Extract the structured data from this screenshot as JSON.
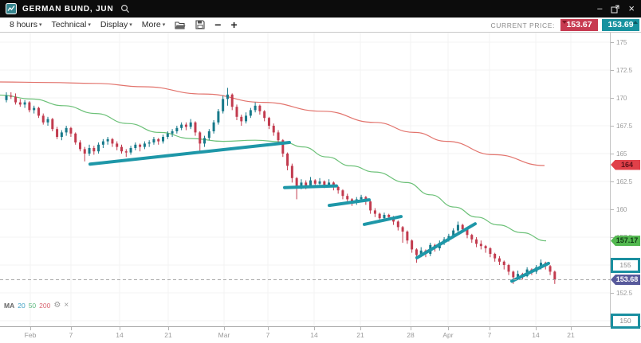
{
  "window": {
    "title": "GERMAN BUND, JUN",
    "minimize_label": "–",
    "close_label": "×"
  },
  "toolbar": {
    "menus": [
      {
        "label": "8 hours"
      },
      {
        "label": "Technical"
      },
      {
        "label": "Display"
      },
      {
        "label": "More"
      }
    ],
    "caret": "▾",
    "zoom_out_label": "−",
    "zoom_in_label": "+",
    "current_price_label": "CURRENT PRICE:",
    "bid": "153.67",
    "ask": "153.69",
    "bid_color": "#c73a50",
    "ask_color": "#17929f"
  },
  "legend": {
    "name": "MA",
    "periods": [
      {
        "label": "20",
        "color": "#3d9fc4"
      },
      {
        "label": "50",
        "color": "#5cb87e"
      },
      {
        "label": "200",
        "color": "#d96470"
      }
    ],
    "gear": "⚙",
    "close": "×"
  },
  "chart_data": {
    "type": "candlestick",
    "title": "GERMAN BUND, JUN",
    "timeframe": "8 hours",
    "ylim": [
      149.5,
      175.8
    ],
    "grid": true,
    "current_price": 153.68,
    "colors": {
      "up": "#17798a",
      "down": "#c23b4e",
      "trendline": "#1e97a8",
      "ma50": "#6cc178",
      "ma200": "#e2736c",
      "grid": "#f3f3f3",
      "price_line": "#a8a8a8"
    },
    "y_ticks": [
      {
        "label": "175",
        "price": 175
      },
      {
        "label": "172.5",
        "price": 172.5
      },
      {
        "label": "170",
        "price": 170
      },
      {
        "label": "167.5",
        "price": 167.5
      },
      {
        "label": "165",
        "price": 165
      },
      {
        "label": "162.5",
        "price": 162.5
      },
      {
        "label": "160",
        "price": 160
      },
      {
        "label": "157.5",
        "price": 157.5
      },
      {
        "label": "155",
        "price": 155
      },
      {
        "label": "152.5",
        "price": 152.5
      },
      {
        "label": "150",
        "price": 150
      }
    ],
    "x_ticks": [
      {
        "label": "Feb",
        "x": 38
      },
      {
        "label": "7",
        "x": 89
      },
      {
        "label": "14",
        "x": 150
      },
      {
        "label": "21",
        "x": 211
      },
      {
        "label": "Mar",
        "x": 281
      },
      {
        "label": "7",
        "x": 336
      },
      {
        "label": "14",
        "x": 394
      },
      {
        "label": "21",
        "x": 452
      },
      {
        "label": "28",
        "x": 515
      },
      {
        "label": "Apr",
        "x": 562
      },
      {
        "label": "7",
        "x": 614
      },
      {
        "label": "14",
        "x": 672
      },
      {
        "label": "21",
        "x": 716
      }
    ],
    "axis_markers": [
      {
        "label": "164",
        "type": "tag",
        "price": 164.0,
        "bg": "#e04049",
        "fg": "#5d1019"
      },
      {
        "label": "157.17",
        "type": "tag",
        "price": 157.17,
        "bg": "#52b84f",
        "fg": "#103a14"
      },
      {
        "label": "155",
        "type": "box",
        "price": 155
      },
      {
        "label": "153.68",
        "type": "tag",
        "price": 153.68,
        "bg": "#585a9b",
        "fg": "#ffffff"
      },
      {
        "label": "150",
        "type": "box",
        "price": 150
      }
    ],
    "ma50_points": [
      [
        0,
        170.25
      ],
      [
        40,
        169.9
      ],
      [
        80,
        169.3
      ],
      [
        120,
        168.6
      ],
      [
        160,
        167.7
      ],
      [
        200,
        166.9
      ],
      [
        240,
        166.35
      ],
      [
        280,
        166.1
      ],
      [
        320,
        166.2
      ],
      [
        355,
        166.05
      ],
      [
        380,
        165.6
      ],
      [
        410,
        164.7
      ],
      [
        440,
        163.9
      ],
      [
        470,
        163.35
      ],
      [
        510,
        162.4
      ],
      [
        540,
        161.3
      ],
      [
        570,
        160.2
      ],
      [
        598,
        159.3
      ],
      [
        625,
        158.6
      ],
      [
        655,
        157.9
      ],
      [
        685,
        157.17
      ]
    ],
    "ma200_points": [
      [
        0,
        171.43
      ],
      [
        60,
        171.38
      ],
      [
        120,
        171.3
      ],
      [
        180,
        171.0
      ],
      [
        255,
        170.35
      ],
      [
        330,
        169.6
      ],
      [
        405,
        168.8
      ],
      [
        470,
        167.8
      ],
      [
        520,
        166.9
      ],
      [
        560,
        166.1
      ],
      [
        620,
        164.9
      ],
      [
        683,
        163.93
      ]
    ],
    "trendlines": [
      [
        113,
        164.05,
        363,
        166.0
      ],
      [
        357,
        161.95,
        422,
        162.1
      ],
      [
        413,
        160.35,
        463,
        160.85
      ],
      [
        457,
        158.65,
        503,
        159.35
      ],
      [
        523,
        155.65,
        596,
        158.7
      ],
      [
        642,
        153.55,
        688,
        155.15
      ]
    ],
    "candles": [
      [
        169.8,
        170.5,
        169.6,
        170.2
      ],
      [
        170.2,
        170.5,
        169.9,
        170.1
      ],
      [
        170.1,
        170.4,
        169.4,
        169.6
      ],
      [
        169.6,
        169.9,
        169.2,
        169.4
      ],
      [
        169.4,
        169.8,
        169.1,
        169.6
      ],
      [
        169.6,
        169.7,
        168.7,
        168.9
      ],
      [
        168.9,
        169.3,
        168.6,
        169.1
      ],
      [
        169.1,
        169.2,
        168.2,
        168.4
      ],
      [
        168.4,
        168.6,
        167.6,
        167.8
      ],
      [
        167.8,
        168.3,
        167.5,
        168.1
      ],
      [
        168.1,
        168.2,
        167.0,
        167.2
      ],
      [
        167.2,
        167.4,
        166.3,
        166.5
      ],
      [
        166.5,
        167.1,
        166.2,
        166.9
      ],
      [
        166.9,
        167.5,
        166.6,
        167.3
      ],
      [
        167.3,
        167.4,
        166.5,
        166.8
      ],
      [
        166.8,
        166.9,
        165.8,
        166.0
      ],
      [
        166.0,
        166.2,
        165.2,
        165.4
      ],
      [
        165.4,
        165.6,
        164.3,
        165.0
      ],
      [
        165.0,
        165.8,
        164.8,
        165.5
      ],
      [
        165.5,
        165.7,
        164.9,
        165.2
      ],
      [
        165.2,
        166.0,
        165.0,
        165.8
      ],
      [
        165.8,
        166.3,
        165.5,
        166.1
      ],
      [
        166.1,
        166.5,
        165.8,
        166.3
      ],
      [
        166.3,
        166.4,
        165.6,
        165.9
      ],
      [
        165.9,
        166.1,
        165.3,
        165.6
      ],
      [
        165.6,
        165.8,
        165.0,
        165.2
      ],
      [
        165.2,
        165.4,
        164.7,
        165.1
      ],
      [
        165.1,
        165.7,
        164.9,
        165.5
      ],
      [
        165.5,
        166.0,
        165.3,
        165.8
      ],
      [
        165.8,
        165.9,
        165.2,
        165.6
      ],
      [
        165.6,
        166.1,
        165.4,
        165.9
      ],
      [
        165.9,
        166.2,
        165.6,
        166.0
      ],
      [
        166.0,
        166.5,
        165.8,
        166.3
      ],
      [
        166.3,
        166.4,
        165.8,
        166.1
      ],
      [
        166.1,
        166.7,
        165.9,
        166.5
      ],
      [
        166.5,
        167.0,
        166.3,
        166.8
      ],
      [
        166.8,
        167.2,
        166.5,
        167.0
      ],
      [
        167.0,
        167.5,
        166.8,
        167.3
      ],
      [
        167.3,
        167.8,
        167.1,
        167.6
      ],
      [
        167.6,
        167.8,
        167.1,
        167.4
      ],
      [
        167.4,
        168.1,
        167.2,
        167.8
      ],
      [
        167.8,
        167.9,
        166.6,
        166.9
      ],
      [
        166.9,
        167.0,
        165.0,
        165.9
      ],
      [
        165.9,
        166.6,
        165.6,
        166.4
      ],
      [
        166.4,
        167.2,
        166.2,
        167.0
      ],
      [
        167.0,
        168.0,
        166.8,
        167.8
      ],
      [
        167.8,
        169.0,
        167.6,
        168.8
      ],
      [
        168.8,
        170.2,
        168.6,
        169.9
      ],
      [
        169.9,
        170.9,
        169.3,
        170.3
      ],
      [
        170.3,
        170.4,
        168.9,
        169.2
      ],
      [
        169.2,
        169.4,
        168.0,
        168.3
      ],
      [
        168.3,
        168.5,
        167.5,
        167.9
      ],
      [
        167.9,
        168.7,
        167.7,
        168.4
      ],
      [
        168.4,
        169.1,
        168.2,
        168.9
      ],
      [
        168.9,
        169.6,
        168.7,
        169.3
      ],
      [
        169.3,
        169.4,
        168.5,
        168.8
      ],
      [
        168.8,
        168.9,
        167.9,
        168.2
      ],
      [
        168.2,
        168.3,
        167.2,
        167.5
      ],
      [
        167.5,
        167.7,
        166.6,
        166.9
      ],
      [
        166.9,
        167.1,
        165.9,
        166.2
      ],
      [
        166.2,
        166.3,
        164.7,
        165.0
      ],
      [
        165.0,
        165.1,
        163.5,
        163.9
      ],
      [
        163.9,
        164.1,
        162.4,
        162.8
      ],
      [
        162.8,
        162.9,
        160.9,
        162.0
      ],
      [
        162.0,
        162.7,
        161.8,
        162.4
      ],
      [
        162.4,
        162.6,
        161.8,
        162.1
      ],
      [
        162.1,
        162.9,
        161.9,
        162.6
      ],
      [
        162.6,
        162.7,
        162.0,
        162.3
      ],
      [
        162.3,
        162.8,
        162.1,
        162.5
      ],
      [
        162.5,
        162.6,
        161.9,
        162.2
      ],
      [
        162.2,
        162.7,
        162.0,
        162.4
      ],
      [
        162.4,
        162.5,
        161.7,
        162.0
      ],
      [
        162.0,
        162.1,
        161.4,
        161.7
      ],
      [
        161.7,
        161.8,
        160.9,
        161.2
      ],
      [
        161.2,
        161.4,
        160.6,
        160.9
      ],
      [
        160.9,
        161.0,
        160.3,
        160.6
      ],
      [
        160.6,
        161.1,
        160.4,
        160.9
      ],
      [
        160.9,
        161.3,
        160.7,
        161.1
      ],
      [
        161.1,
        161.2,
        160.4,
        160.7
      ],
      [
        160.7,
        160.8,
        159.6,
        159.9
      ],
      [
        159.9,
        160.1,
        159.3,
        159.6
      ],
      [
        159.6,
        159.7,
        158.9,
        159.2
      ],
      [
        159.2,
        159.7,
        159.0,
        159.5
      ],
      [
        159.5,
        159.6,
        159.0,
        159.3
      ],
      [
        159.3,
        159.4,
        158.6,
        158.9
      ],
      [
        158.9,
        159.0,
        158.1,
        158.4
      ],
      [
        158.4,
        158.5,
        157.0,
        158.0
      ],
      [
        158.0,
        158.1,
        156.9,
        157.2
      ],
      [
        157.2,
        157.3,
        156.1,
        156.4
      ],
      [
        156.4,
        156.5,
        155.2,
        155.9
      ],
      [
        155.9,
        156.6,
        155.7,
        156.3
      ],
      [
        156.3,
        156.4,
        155.7,
        156.0
      ],
      [
        156.0,
        157.0,
        155.8,
        156.8
      ],
      [
        156.8,
        156.9,
        156.2,
        156.5
      ],
      [
        156.5,
        157.2,
        156.3,
        157.0
      ],
      [
        157.0,
        157.5,
        156.8,
        157.3
      ],
      [
        157.3,
        157.8,
        157.1,
        157.6
      ],
      [
        157.6,
        158.3,
        157.4,
        158.1
      ],
      [
        158.1,
        158.9,
        157.9,
        158.6
      ],
      [
        158.6,
        158.7,
        157.9,
        158.2
      ],
      [
        158.2,
        158.3,
        157.4,
        157.7
      ],
      [
        157.7,
        157.8,
        157.0,
        157.3
      ],
      [
        157.3,
        157.5,
        156.6,
        156.9
      ],
      [
        156.9,
        157.2,
        156.4,
        156.7
      ],
      [
        156.7,
        156.8,
        156.1,
        156.5
      ],
      [
        156.5,
        156.6,
        155.7,
        156.0
      ],
      [
        156.0,
        156.1,
        155.3,
        155.6
      ],
      [
        155.6,
        155.8,
        155.0,
        155.3
      ],
      [
        155.3,
        155.4,
        154.6,
        155.0
      ],
      [
        155.0,
        155.1,
        154.1,
        154.4
      ],
      [
        154.4,
        154.5,
        153.3,
        153.9
      ],
      [
        153.9,
        154.5,
        153.7,
        154.2
      ],
      [
        154.2,
        154.3,
        153.7,
        154.0
      ],
      [
        154.0,
        154.8,
        153.9,
        154.6
      ],
      [
        154.6,
        154.7,
        154.1,
        154.4
      ],
      [
        154.4,
        155.0,
        154.2,
        154.8
      ],
      [
        154.8,
        155.5,
        154.6,
        155.2
      ],
      [
        155.2,
        155.3,
        154.6,
        154.9
      ],
      [
        154.9,
        155.0,
        154.1,
        154.4
      ],
      [
        154.4,
        154.5,
        153.3,
        153.69
      ]
    ]
  }
}
